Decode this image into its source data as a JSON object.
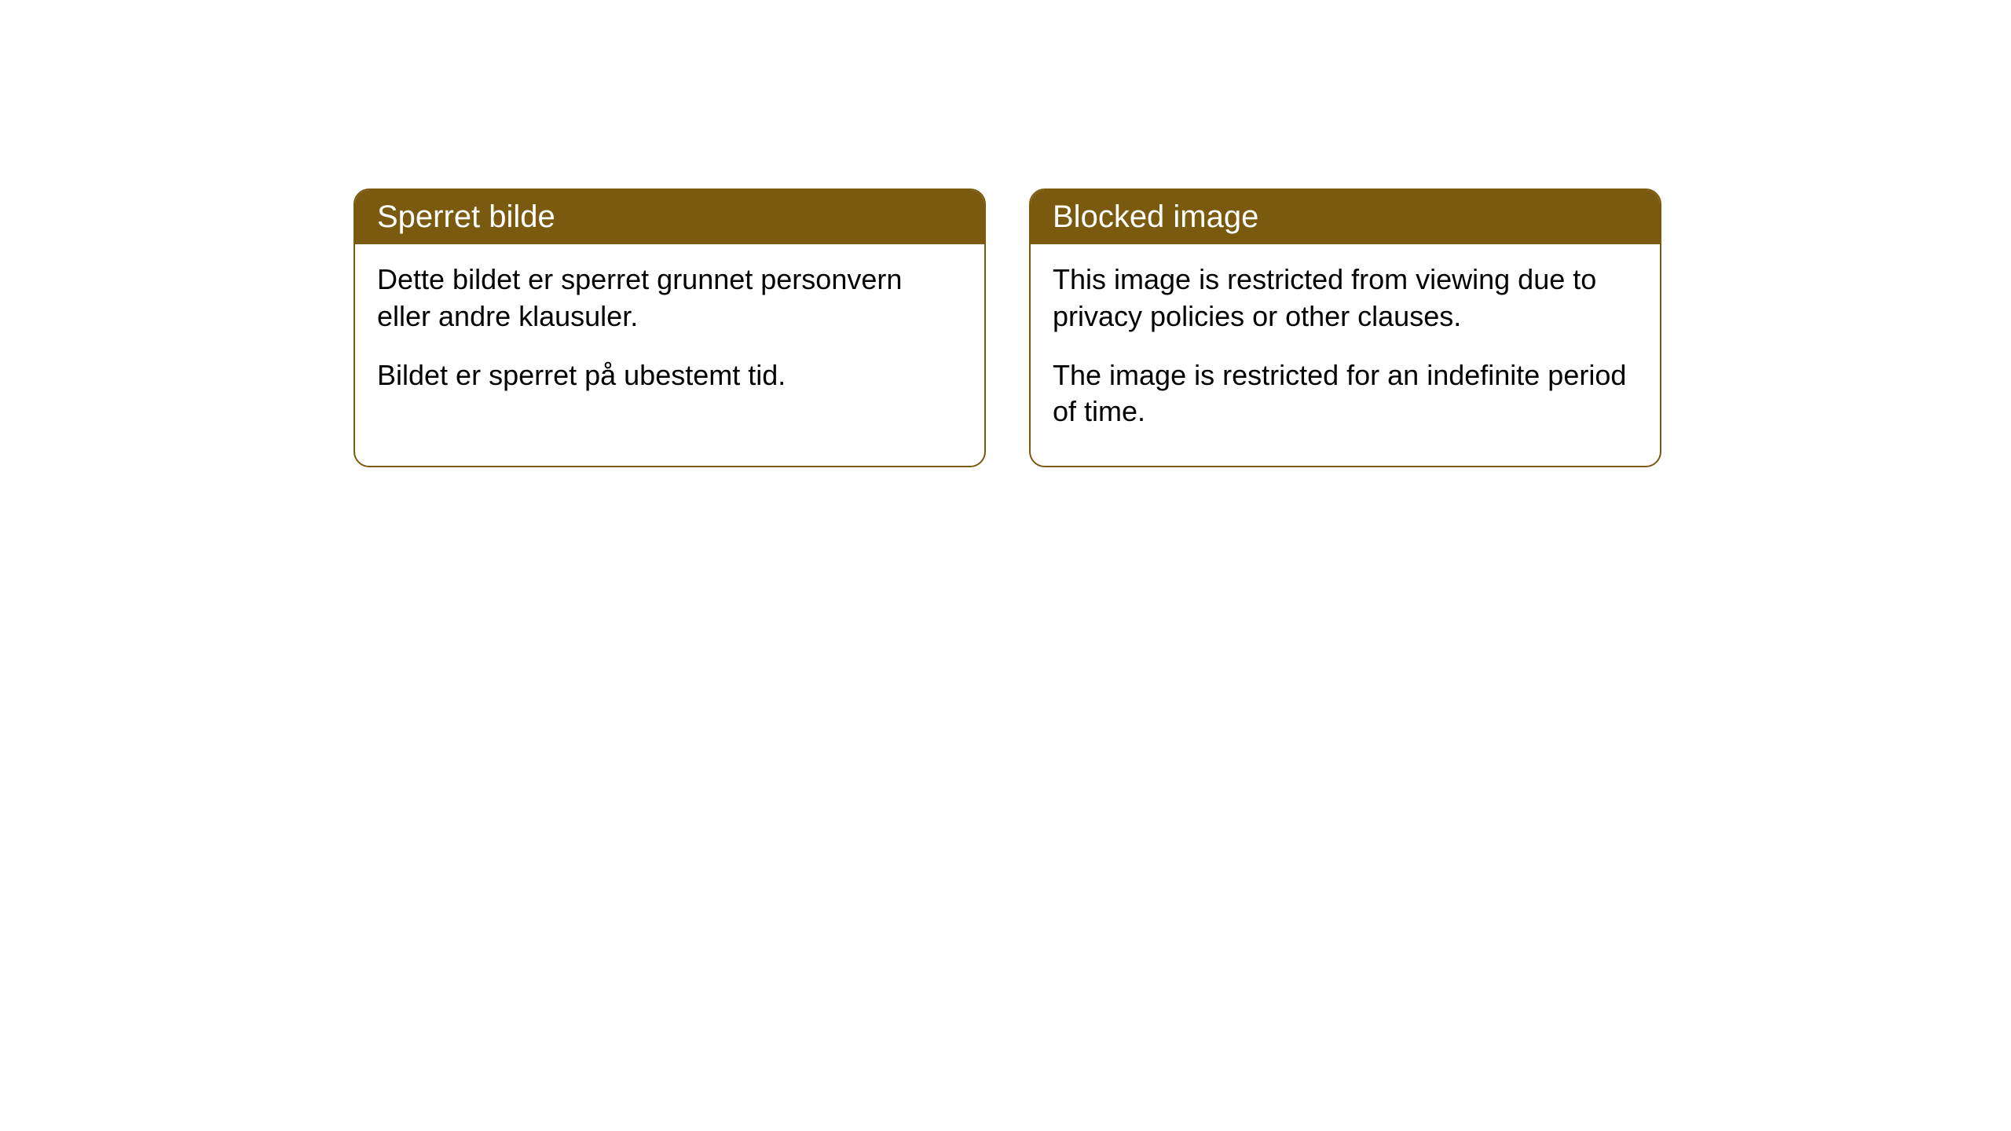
{
  "cards": [
    {
      "title": "Sperret bilde",
      "paragraph1": "Dette bildet er sperret grunnet personvern eller andre klausuler.",
      "paragraph2": "Bildet er sperret på ubestemt tid."
    },
    {
      "title": "Blocked image",
      "paragraph1": "This image is restricted from viewing due to privacy policies or other clauses.",
      "paragraph2": "The image is restricted for an indefinite period of time."
    }
  ],
  "styling": {
    "card_border_color": "#7a5a0f",
    "card_header_bg": "#7a5a0f",
    "card_header_text_color": "#ffffff",
    "card_body_bg": "#ffffff",
    "body_text_color": "#000000",
    "border_radius": 20,
    "header_fontsize": 40,
    "body_fontsize": 36
  }
}
